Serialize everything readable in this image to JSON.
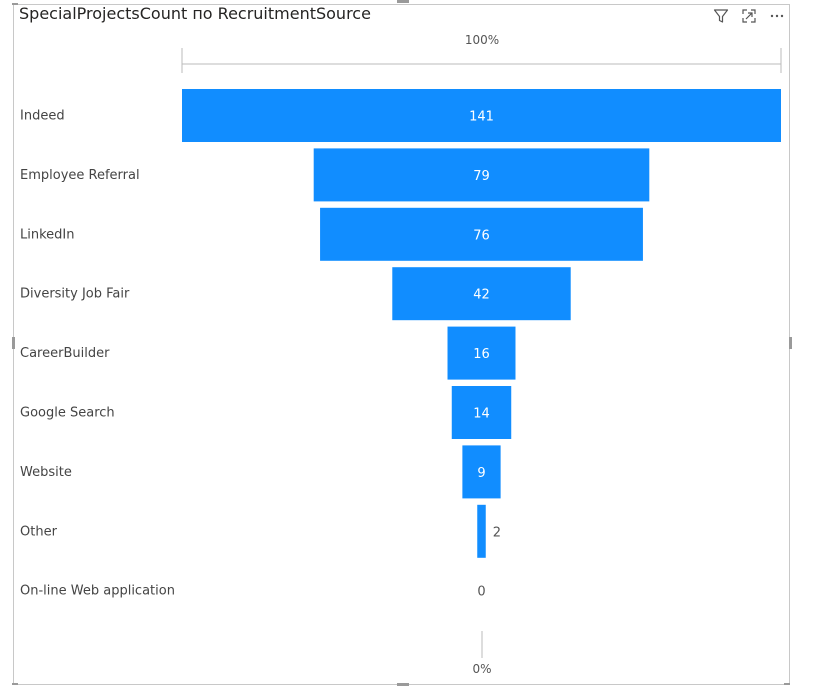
{
  "visual": {
    "title": "SpecialProjectsCount по RecruitmentSource",
    "icons": [
      "filter-icon",
      "focus-mode-icon",
      "more-options-icon"
    ]
  },
  "colors": {
    "bar": "#118DFF",
    "inside_label": "#ffffff",
    "outside_label": "#555555"
  },
  "chart_data": {
    "type": "bar",
    "subtype": "funnel",
    "categories": [
      "Indeed",
      "Employee Referral",
      "LinkedIn",
      "Diversity Job Fair",
      "CareerBuilder",
      "Google Search",
      "Website",
      "Other",
      "On-line Web application"
    ],
    "values": [
      141,
      79,
      76,
      42,
      16,
      14,
      9,
      2,
      0
    ],
    "top_percent_label": "100%",
    "bottom_percent_label": "0%"
  }
}
